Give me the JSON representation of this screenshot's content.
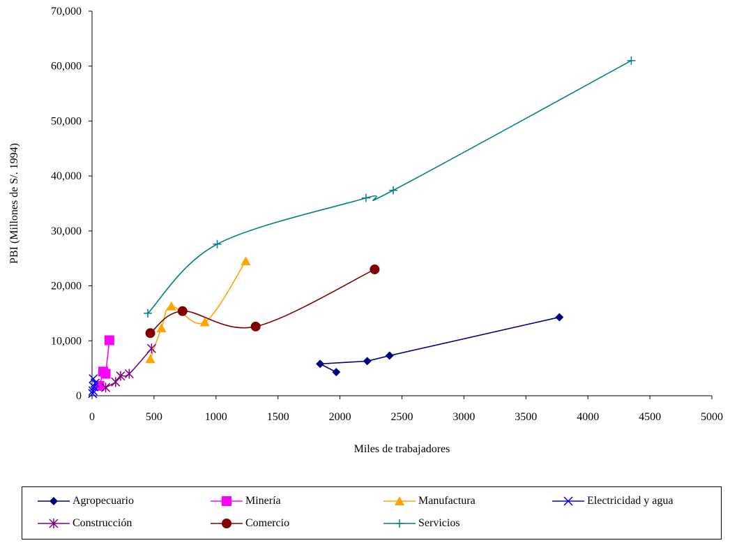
{
  "chart_data": {
    "type": "line",
    "xlabel": "Miles de trabajadores",
    "ylabel": "PBI (Millones de S/. 1994)",
    "xlim": [
      0,
      5000
    ],
    "ylim": [
      0,
      70000
    ],
    "x_ticks": [
      "0",
      "500",
      "1000",
      "1500",
      "2000",
      "2500",
      "3000",
      "3500",
      "4000",
      "4500",
      "5000"
    ],
    "y_ticks": [
      "0",
      "10,000",
      "20,000",
      "30,000",
      "40,000",
      "50,000",
      "60,000",
      "70,000"
    ],
    "grid": false,
    "legend_position": "bottom",
    "series": [
      {
        "name": "Agropecuario",
        "color": "#000080",
        "marker": "diamond",
        "smooth": false,
        "points": [
          [
            1970,
            4300
          ],
          [
            1840,
            5800
          ],
          [
            2220,
            6300
          ],
          [
            2400,
            7300
          ],
          [
            3770,
            14300
          ]
        ]
      },
      {
        "name": "Minería",
        "color": "#ff00ff",
        "marker": "square",
        "smooth": false,
        "points": [
          [
            60,
            1800
          ],
          [
            90,
            4400
          ],
          [
            110,
            4000
          ],
          [
            140,
            10100
          ]
        ]
      },
      {
        "name": "Manufactura",
        "color": "#ffa500",
        "marker": "triangle",
        "smooth": true,
        "points": [
          [
            470,
            6700
          ],
          [
            560,
            12300
          ],
          [
            640,
            16300
          ],
          [
            910,
            13400
          ],
          [
            1240,
            24500
          ]
        ]
      },
      {
        "name": "Electricidad y agua",
        "color": "#0000ff",
        "marker": "x",
        "smooth": false,
        "points": [
          [
            5,
            400
          ],
          [
            8,
            900
          ],
          [
            15,
            1600
          ],
          [
            25,
            2300
          ],
          [
            10,
            3100
          ]
        ]
      },
      {
        "name": "Construcción",
        "color": "#800080",
        "marker": "star",
        "smooth": true,
        "points": [
          [
            110,
            1500
          ],
          [
            190,
            2500
          ],
          [
            230,
            3600
          ],
          [
            300,
            4000
          ],
          [
            480,
            8600
          ]
        ]
      },
      {
        "name": "Comercio",
        "color": "#800000",
        "marker": "circle",
        "smooth": true,
        "points": [
          [
            470,
            11400
          ],
          [
            730,
            15400
          ],
          [
            1320,
            12600
          ],
          [
            2280,
            23000
          ]
        ]
      },
      {
        "name": "Servicios",
        "color": "#008080",
        "marker": "plus",
        "smooth": true,
        "points": [
          [
            450,
            15000
          ],
          [
            1010,
            27600
          ],
          [
            2210,
            36000
          ],
          [
            2430,
            37400
          ],
          [
            4350,
            61000
          ]
        ]
      }
    ]
  }
}
